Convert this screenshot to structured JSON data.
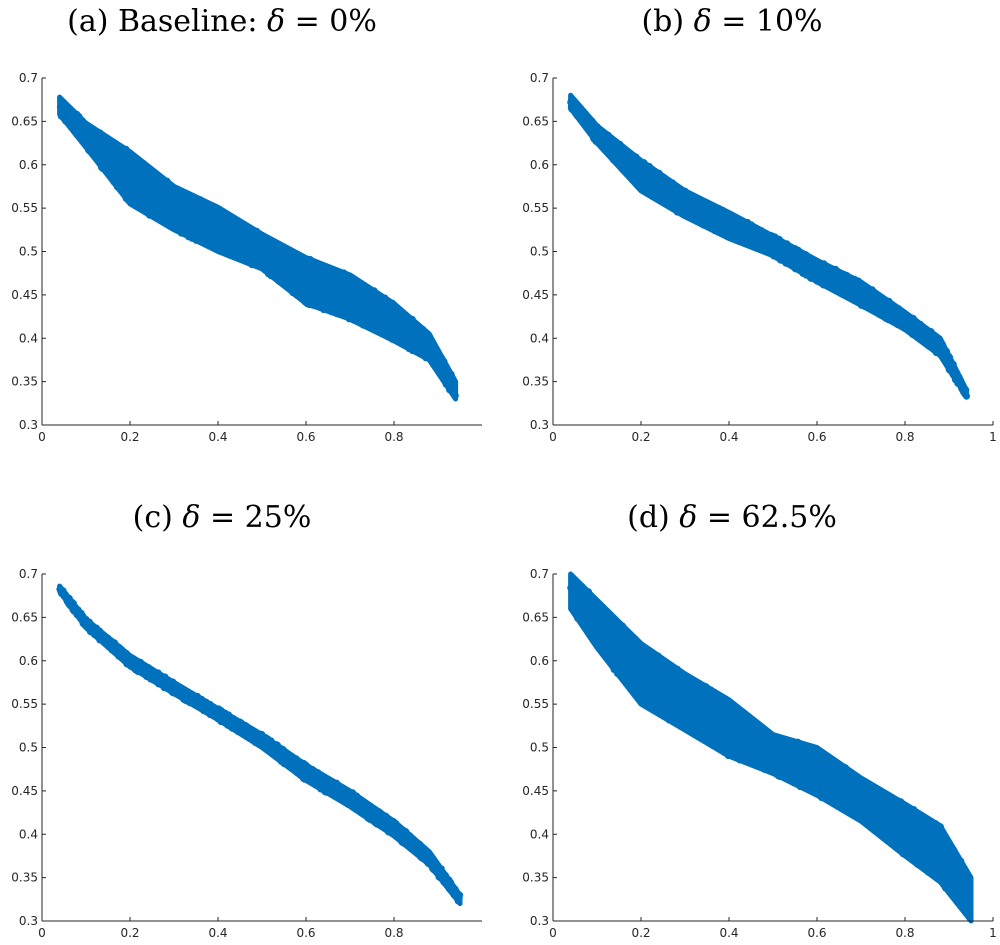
{
  "chart_data": [
    {
      "type": "scatter",
      "title_prefix": "(a) Baseline: ",
      "title_symbol": "δ",
      "title_suffix": " = 0%",
      "xlim": [
        0,
        1
      ],
      "ylim": [
        0.3,
        0.7
      ],
      "xticks": [
        "0",
        "0.2",
        "0.4",
        "0.6",
        "0.8"
      ],
      "yticks": [
        "0.3",
        "0.35",
        "0.4",
        "0.45",
        "0.5",
        "0.55",
        "0.6",
        "0.65",
        "0.7"
      ],
      "color": "#0072BD",
      "band": {
        "x": [
          0.04,
          0.1,
          0.2,
          0.3,
          0.4,
          0.5,
          0.6,
          0.7,
          0.8,
          0.88,
          0.94
        ],
        "upper": [
          0.678,
          0.648,
          0.615,
          0.575,
          0.551,
          0.52,
          0.493,
          0.473,
          0.44,
          0.405,
          0.35
        ],
        "lower": [
          0.658,
          0.62,
          0.555,
          0.525,
          0.5,
          0.48,
          0.44,
          0.422,
          0.397,
          0.375,
          0.33
        ]
      }
    },
    {
      "type": "scatter",
      "title_prefix": "(b) ",
      "title_symbol": "δ",
      "title_suffix": " = 10%",
      "xlim": [
        0,
        1
      ],
      "ylim": [
        0.3,
        0.7
      ],
      "xticks": [
        "0",
        "0.2",
        "0.4",
        "0.6",
        "0.8",
        "1"
      ],
      "yticks": [
        "0.3",
        "0.35",
        "0.4",
        "0.45",
        "0.5",
        "0.55",
        "0.6",
        "0.65",
        "0.7"
      ],
      "color": "#0072BD",
      "band": {
        "x": [
          0.04,
          0.1,
          0.2,
          0.3,
          0.4,
          0.5,
          0.6,
          0.7,
          0.8,
          0.88,
          0.94
        ],
        "upper": [
          0.68,
          0.645,
          0.605,
          0.57,
          0.545,
          0.518,
          0.49,
          0.465,
          0.43,
          0.4,
          0.34
        ],
        "lower": [
          0.665,
          0.625,
          0.57,
          0.54,
          0.515,
          0.495,
          0.465,
          0.438,
          0.41,
          0.38,
          0.332
        ]
      }
    },
    {
      "type": "scatter",
      "title_prefix": "(c) ",
      "title_symbol": "δ",
      "title_suffix": " = 25%",
      "xlim": [
        0,
        1
      ],
      "ylim": [
        0.3,
        0.7
      ],
      "xticks": [
        "0",
        "0.2",
        "0.4",
        "0.6",
        "0.8"
      ],
      "yticks": [
        "0.3",
        "0.35",
        "0.4",
        "0.45",
        "0.5",
        "0.55",
        "0.6",
        "0.65",
        "0.7"
      ],
      "color": "#0072BD",
      "band": {
        "x": [
          0.04,
          0.1,
          0.2,
          0.3,
          0.4,
          0.5,
          0.6,
          0.7,
          0.8,
          0.88,
          0.95
        ],
        "upper": [
          0.686,
          0.648,
          0.606,
          0.575,
          0.545,
          0.515,
          0.48,
          0.45,
          0.415,
          0.38,
          0.33
        ],
        "lower": [
          0.68,
          0.638,
          0.593,
          0.562,
          0.532,
          0.5,
          0.462,
          0.432,
          0.398,
          0.365,
          0.32
        ]
      }
    },
    {
      "type": "scatter",
      "title_prefix": "(d) ",
      "title_symbol": "δ",
      "title_suffix": " = 62.5%",
      "xlim": [
        0,
        1
      ],
      "ylim": [
        0.3,
        0.7
      ],
      "xticks": [
        "0",
        "0.2",
        "0.4",
        "0.6",
        "0.8",
        "1"
      ],
      "yticks": [
        "0.3",
        "0.35",
        "0.4",
        "0.45",
        "0.5",
        "0.55",
        "0.6",
        "0.65",
        "0.7"
      ],
      "color": "#0072BD",
      "band": {
        "x": [
          0.04,
          0.1,
          0.2,
          0.3,
          0.4,
          0.5,
          0.6,
          0.7,
          0.8,
          0.88,
          0.95
        ],
        "upper": [
          0.7,
          0.67,
          0.62,
          0.585,
          0.555,
          0.515,
          0.5,
          0.465,
          0.435,
          0.41,
          0.35
        ],
        "lower": [
          0.66,
          0.615,
          0.55,
          0.52,
          0.49,
          0.47,
          0.445,
          0.415,
          0.375,
          0.345,
          0.3
        ]
      }
    }
  ]
}
